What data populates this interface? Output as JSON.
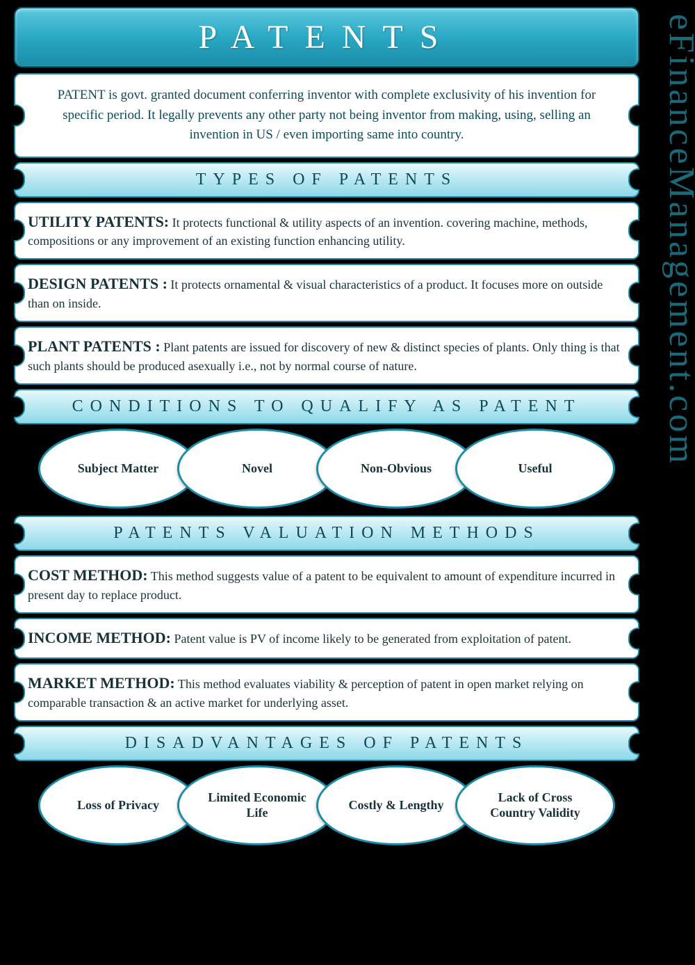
{
  "colors": {
    "background": "#000000",
    "border": "#1a8ca8",
    "text_dark": "#0d4a5a",
    "title_bg_top": "#5cc8de",
    "title_bg_bottom": "#1a8ca8",
    "header_bg_top": "#e8f8fc",
    "header_bg_bottom": "#8dd8e8",
    "card_bg": "#ffffff",
    "watermark": "#1a6a7a"
  },
  "watermark": "eFinanceManagement.com",
  "title": "PATENTS",
  "intro": "PATENT is govt. granted document conferring inventor with complete exclusivity of his invention for specific period. It legally prevents any other party not being inventor from making, using, selling an invention in US / even importing same into country.",
  "sections": {
    "types": {
      "header": "TYPES OF PATENTS",
      "items": [
        {
          "lead": "UTILITY PATENTS:",
          "body": " It protects functional & utility aspects of an invention. covering machine, methods, compositions or any improvement of an existing function enhancing utility."
        },
        {
          "lead": "DESIGN PATENTS :",
          "body": " It protects ornamental & visual characteristics of a product. It focuses more on outside than on inside."
        },
        {
          "lead": "PLANT PATENTS :",
          "body": " Plant patents are issued for discovery of new & distinct species of plants. Only thing is that such plants should be produced asexually i.e., not by normal course of nature."
        }
      ]
    },
    "conditions": {
      "header": "CONDITIONS TO QUALIFY AS PATENT",
      "ovals": [
        "Subject Matter",
        "Novel",
        "Non-Obvious",
        "Useful"
      ]
    },
    "valuation": {
      "header": "PATENTS VALUATION METHODS",
      "items": [
        {
          "lead": "COST METHOD:",
          "body": " This method suggests value of a patent to be equivalent to amount of expenditure incurred in present day to replace product."
        },
        {
          "lead": "INCOME METHOD:",
          "body": " Patent value is PV of income likely to be generated from exploitation of patent."
        },
        {
          "lead": "MARKET METHOD:",
          "body": " This method evaluates viability & perception of patent in open market relying on comparable transaction & an active market for underlying asset."
        }
      ]
    },
    "disadvantages": {
      "header": "DISADVANTAGES OF PATENTS",
      "ovals": [
        "Loss of Privacy",
        "Limited Economic Life",
        "Costly & Lengthy",
        "Lack of Cross Country Validity"
      ]
    }
  }
}
